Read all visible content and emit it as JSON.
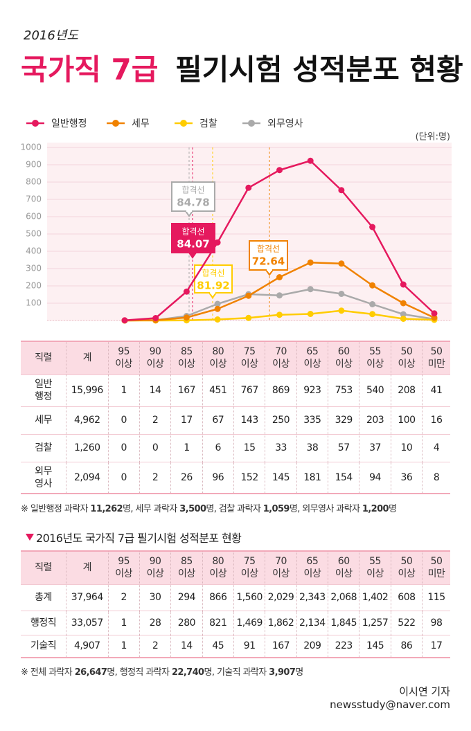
{
  "header": {
    "year": "2016년도",
    "title_highlight": "국가직 7급",
    "title": "필기시험 성적분포 현황"
  },
  "chart_data": {
    "type": "line",
    "unit_label": "(단위:명)",
    "categories": [
      null,
      null,
      null,
      null,
      null,
      null,
      null,
      null,
      null,
      null,
      null
    ],
    "series": [
      {
        "name": "일반행정",
        "color": "#e5195e",
        "values": [
          1,
          14,
          167,
          451,
          767,
          869,
          923,
          753,
          540,
          208,
          41
        ]
      },
      {
        "name": "세무",
        "color": "#f08200",
        "values": [
          0,
          2,
          17,
          67,
          143,
          250,
          335,
          329,
          203,
          100,
          16
        ]
      },
      {
        "name": "검찰",
        "color": "#ffcc00",
        "values": [
          0,
          0,
          1,
          6,
          15,
          33,
          38,
          57,
          37,
          10,
          4
        ]
      },
      {
        "name": "외무영사",
        "color": "#aaaaaa",
        "values": [
          0,
          2,
          26,
          96,
          152,
          145,
          181,
          154,
          94,
          36,
          8
        ]
      }
    ],
    "ylim": [
      0,
      1000
    ],
    "yticks": [
      100,
      200,
      300,
      400,
      500,
      600,
      700,
      800,
      900,
      1000
    ],
    "grid": true,
    "legend": "top-left",
    "annotations": [
      {
        "label": "합격선",
        "value": 84.78,
        "color": "#aaaaaa"
      },
      {
        "label": "합격선",
        "value": 84.07,
        "color": "#e5195e"
      },
      {
        "label": "합격선",
        "value": 81.92,
        "color": "#ffcc00"
      },
      {
        "label": "합격선",
        "value": 72.64,
        "color": "#f08200"
      }
    ]
  },
  "table1": {
    "header": [
      "직렬",
      "계",
      "95\n이상",
      "90\n이상",
      "85\n이상",
      "80\n이상",
      "75\n이상",
      "70\n이상",
      "65\n이상",
      "60\n이상",
      "55\n이상",
      "50\n이상",
      "50\n미만"
    ],
    "rows": [
      [
        "일반\n행정",
        "15,996",
        "1",
        "14",
        "167",
        "451",
        "767",
        "869",
        "923",
        "753",
        "540",
        "208",
        "41"
      ],
      [
        "세무",
        "4,962",
        "0",
        "2",
        "17",
        "67",
        "143",
        "250",
        "335",
        "329",
        "203",
        "100",
        "16"
      ],
      [
        "검찰",
        "1,260",
        "0",
        "0",
        "1",
        "6",
        "15",
        "33",
        "38",
        "57",
        "37",
        "10",
        "4"
      ],
      [
        "외무\n영사",
        "2,094",
        "0",
        "2",
        "26",
        "96",
        "152",
        "145",
        "181",
        "154",
        "94",
        "36",
        "8"
      ]
    ],
    "note": "※ 일반행정 과락자 11,262명, 세무 과락자 3,500명, 검찰 과락자 1,059명, 외무영사 과락자 1,200명"
  },
  "section2": {
    "title": "2016년도 국가직 7급 필기시험 성적분포 현황"
  },
  "table2": {
    "header": [
      "직렬",
      "계",
      "95\n이상",
      "90\n이상",
      "85\n이상",
      "80\n이상",
      "75\n이상",
      "70\n이상",
      "65\n이상",
      "60\n이상",
      "55\n이상",
      "50\n이상",
      "50\n미만"
    ],
    "rows": [
      [
        "총계",
        "37,964",
        "2",
        "30",
        "294",
        "866",
        "1,560",
        "2,029",
        "2,343",
        "2,068",
        "1,402",
        "608",
        "115"
      ],
      [
        "행정직",
        "33,057",
        "1",
        "28",
        "280",
        "821",
        "1,469",
        "1,862",
        "2,134",
        "1,845",
        "1,257",
        "522",
        "98"
      ],
      [
        "기술직",
        "4,907",
        "1",
        "2",
        "14",
        "45",
        "91",
        "167",
        "209",
        "223",
        "145",
        "86",
        "17"
      ]
    ],
    "note": "※ 전체 과락자 26,647명, 행정직 과락자 22,740명, 기술직 과락자 3,907명"
  },
  "credit": {
    "author": "이시연 기자",
    "email": "newsstudy@naver.com"
  }
}
